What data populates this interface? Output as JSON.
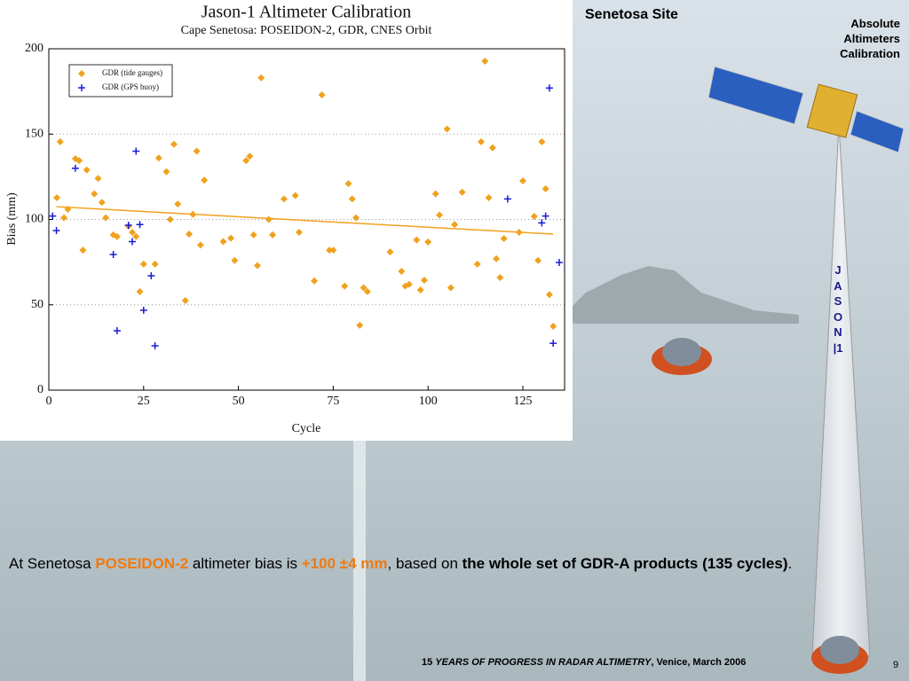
{
  "chart_data": {
    "type": "scatter",
    "title": "Jason-1 Altimeter Calibration",
    "subtitle": "Cape Senetosa: POSEIDON-2, GDR, CNES Orbit",
    "x_label": "Cycle",
    "y_label": "Bias (mm)",
    "xlim": [
      0,
      136
    ],
    "xticks": [
      0,
      25,
      50,
      75,
      100,
      125
    ],
    "ylim": [
      0,
      200
    ],
    "yticks": [
      0,
      50,
      100,
      150,
      200
    ],
    "grid": true,
    "legend": "upper-left",
    "series": [
      {
        "name": "GDR (tide gauges)",
        "color": "#f0a21e",
        "marker": "diamond",
        "x": [
          2.1,
          3,
          4,
          5,
          7,
          8,
          9,
          10,
          12,
          13,
          14,
          15,
          17,
          18,
          21,
          22,
          23,
          24,
          25,
          28,
          29,
          31,
          32,
          33,
          34,
          36,
          37,
          38,
          39,
          40,
          41,
          46,
          48,
          49,
          52,
          53,
          54,
          55,
          56,
          58,
          59,
          62,
          65,
          66,
          70,
          72,
          74,
          75,
          78,
          79,
          80,
          81,
          82,
          83,
          84,
          90,
          93,
          94,
          95,
          97,
          98,
          99,
          100,
          102,
          103,
          105,
          106,
          107,
          109,
          113,
          114,
          115,
          116,
          117,
          118,
          119,
          120,
          124,
          125,
          128,
          129,
          130,
          131,
          132,
          133
        ],
        "values": [
          112.7,
          145.5,
          101,
          106,
          135.6,
          134.5,
          82,
          129,
          115,
          124,
          110,
          101,
          91,
          90,
          96,
          92.5,
          90,
          57.7,
          73.8,
          73.8,
          136,
          128,
          100,
          144,
          109,
          52.5,
          91.4,
          103,
          140,
          85,
          123,
          87,
          89,
          76,
          134.5,
          137,
          91,
          73,
          183,
          100,
          91,
          112,
          114,
          92.5,
          64,
          173,
          82,
          82,
          61,
          121,
          112,
          101,
          38,
          60,
          57.7,
          81,
          69.6,
          61,
          62,
          88,
          58.7,
          64.4,
          86.8,
          115,
          102.6,
          153,
          60,
          97,
          116,
          73.8,
          145.5,
          192.7,
          112.7,
          142,
          77,
          66,
          88.8,
          92.5,
          122.6,
          101.8,
          76,
          145.5,
          118,
          56,
          37.4
        ]
      },
      {
        "name": "GDR (GPS buoy)",
        "color": "#1a1ad8",
        "marker": "plus",
        "x": [
          1,
          2,
          7,
          17,
          18,
          21,
          22,
          23,
          24,
          25,
          27,
          28,
          121,
          130,
          131,
          132,
          133,
          134.6
        ],
        "values": [
          102,
          93.5,
          130,
          79.5,
          34.8,
          96.6,
          87,
          140,
          97,
          46.8,
          67,
          26,
          112,
          98,
          102,
          177,
          27.5,
          74.8
        ]
      }
    ],
    "trend_line": {
      "color": "#f0a21e",
      "x": [
        2,
        133
      ],
      "values": [
        107.5,
        91.4
      ]
    }
  },
  "slide": {
    "site_title": "Senetosa Site",
    "corner_title": "Absolute Altimeters Calibration",
    "vertical_label": "JASON|1",
    "summary": [
      "At Senetosa ",
      "POSEIDON-2",
      " altimeter bias is ",
      "+100 ±4 mm",
      ", based on ",
      "the whole set of GDR-A products (135 cycles)",
      "."
    ],
    "footer": [
      "15 ",
      "YEARS OF PROGRESS IN RADAR ALTIMETRY",
      ", Venice, March 2006"
    ],
    "page_number": "9"
  }
}
